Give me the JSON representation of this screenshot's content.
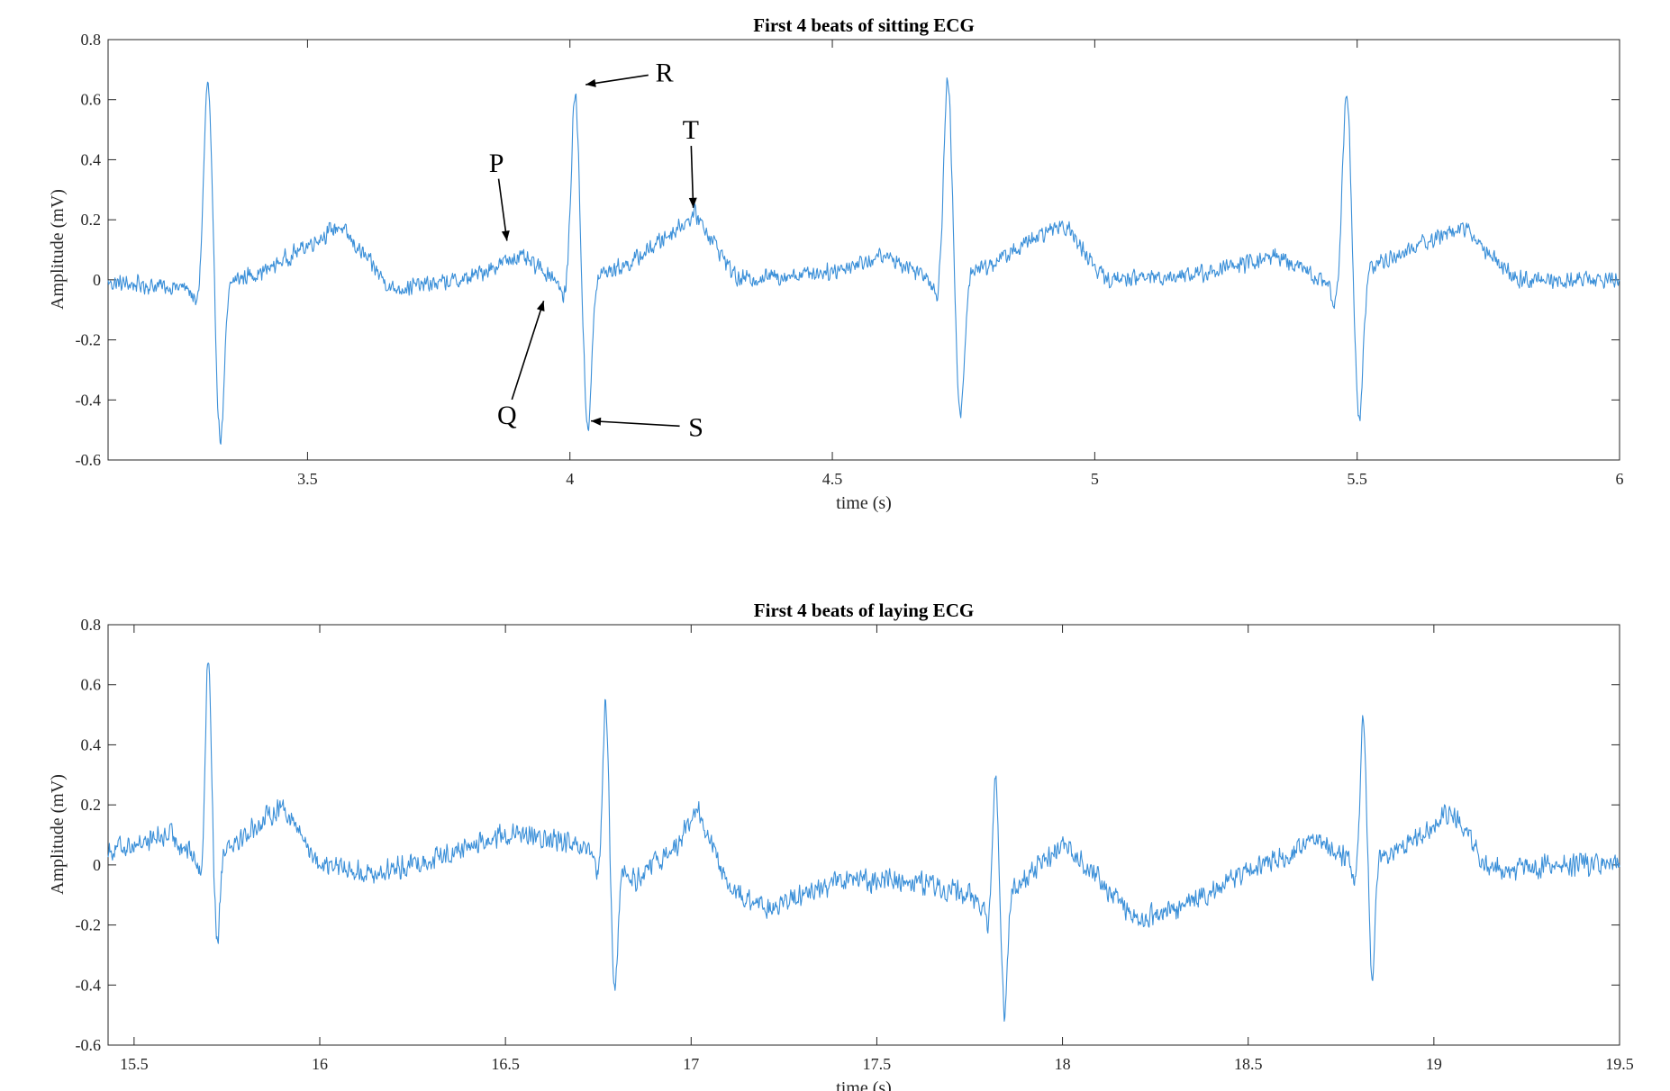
{
  "chart_data": [
    {
      "type": "line",
      "title": "First 4 beats of sitting ECG",
      "xlabel": "time (s)",
      "ylabel": "Amplitude (mV)",
      "xlim": [
        3.12,
        6.0
      ],
      "ylim": [
        -0.6,
        0.8
      ],
      "xticks": [
        3.5,
        4,
        4.5,
        5,
        5.5,
        6
      ],
      "xtick_labels": [
        "3.5",
        "4",
        "4.5",
        "5",
        "5.5",
        "6"
      ],
      "yticks": [
        -0.6,
        -0.4,
        -0.2,
        0,
        0.2,
        0.4,
        0.6,
        0.8
      ],
      "ytick_labels": [
        "-0.6",
        "-0.4",
        "-0.2",
        "0",
        "0.2",
        "0.4",
        "0.6",
        "0.8"
      ],
      "grid": false,
      "line_color": "#3a8fd8",
      "noise_amplitude": 0.035,
      "baseline_points": [
        [
          3.12,
          -0.01
        ],
        [
          3.3,
          -0.03
        ],
        [
          3.42,
          0.03
        ],
        [
          3.56,
          0.18
        ],
        [
          3.66,
          -0.03
        ],
        [
          3.8,
          0.0
        ],
        [
          3.9,
          0.08
        ],
        [
          4.0,
          -0.02
        ],
        [
          4.12,
          0.06
        ],
        [
          4.24,
          0.22
        ],
        [
          4.32,
          0.0
        ],
        [
          4.5,
          0.03
        ],
        [
          4.6,
          0.08
        ],
        [
          4.7,
          0.0
        ],
        [
          4.8,
          0.05
        ],
        [
          4.94,
          0.19
        ],
        [
          5.02,
          0.0
        ],
        [
          5.2,
          0.02
        ],
        [
          5.35,
          0.08
        ],
        [
          5.45,
          -0.02
        ],
        [
          5.56,
          0.07
        ],
        [
          5.7,
          0.18
        ],
        [
          5.8,
          0.0
        ],
        [
          6.0,
          0.0
        ]
      ],
      "beats": [
        {
          "peak_time": 3.31,
          "r": 0.7,
          "s": -0.5
        },
        {
          "peak_time": 4.01,
          "r": 0.65,
          "s": -0.47
        },
        {
          "peak_time": 4.72,
          "r": 0.67,
          "s": -0.46
        },
        {
          "peak_time": 5.48,
          "r": 0.64,
          "s": -0.46
        }
      ],
      "annotations": [
        {
          "text": "R",
          "x": 4.18,
          "y": 0.69,
          "arrow_to": [
            4.03,
            0.65
          ]
        },
        {
          "text": "T",
          "x": 4.23,
          "y": 0.5,
          "arrow_to": [
            4.235,
            0.24
          ]
        },
        {
          "text": "P",
          "x": 3.86,
          "y": 0.39,
          "arrow_to": [
            3.88,
            0.13
          ]
        },
        {
          "text": "Q",
          "x": 3.88,
          "y": -0.45,
          "arrow_to": [
            3.95,
            -0.07
          ]
        },
        {
          "text": "S",
          "x": 4.24,
          "y": -0.49,
          "arrow_to": [
            4.04,
            -0.47
          ]
        }
      ]
    },
    {
      "type": "line",
      "title": "First 4 beats of laying ECG",
      "xlabel": "time (s)",
      "ylabel": "Amplitude (mV)",
      "xlim": [
        15.43,
        19.5
      ],
      "ylim": [
        -0.6,
        0.8
      ],
      "xticks": [
        15.5,
        16,
        16.5,
        17,
        17.5,
        18,
        18.5,
        19,
        19.5
      ],
      "xtick_labels": [
        "15.5",
        "16",
        "16.5",
        "17",
        "17.5",
        "18",
        "18.5",
        "19",
        "19.5"
      ],
      "yticks": [
        -0.6,
        -0.4,
        -0.2,
        0,
        0.2,
        0.4,
        0.6,
        0.8
      ],
      "ytick_labels": [
        "-0.6",
        "-0.4",
        "-0.2",
        "0",
        "0.2",
        "0.4",
        "0.6",
        "0.8"
      ],
      "grid": false,
      "line_color": "#3a8fd8",
      "noise_amplitude": 0.045,
      "baseline_points": [
        [
          15.43,
          0.05
        ],
        [
          15.6,
          0.1
        ],
        [
          15.67,
          0.02
        ],
        [
          15.8,
          0.1
        ],
        [
          15.9,
          0.2
        ],
        [
          16.0,
          0.0
        ],
        [
          16.15,
          -0.03
        ],
        [
          16.3,
          0.02
        ],
        [
          16.5,
          0.1
        ],
        [
          16.65,
          0.08
        ],
        [
          16.75,
          0.02
        ],
        [
          16.85,
          -0.05
        ],
        [
          16.95,
          0.05
        ],
        [
          17.02,
          0.18
        ],
        [
          17.1,
          -0.08
        ],
        [
          17.2,
          -0.15
        ],
        [
          17.4,
          -0.05
        ],
        [
          17.6,
          -0.05
        ],
        [
          17.75,
          -0.1
        ],
        [
          17.8,
          -0.15
        ],
        [
          17.9,
          -0.05
        ],
        [
          18.0,
          0.08
        ],
        [
          18.1,
          -0.05
        ],
        [
          18.2,
          -0.18
        ],
        [
          18.3,
          -0.15
        ],
        [
          18.5,
          -0.02
        ],
        [
          18.7,
          0.08
        ],
        [
          18.8,
          0.0
        ],
        [
          18.9,
          0.05
        ],
        [
          19.05,
          0.18
        ],
        [
          19.15,
          -0.02
        ],
        [
          19.3,
          0.0
        ],
        [
          19.5,
          0.0
        ]
      ],
      "beats": [
        {
          "peak_time": 15.7,
          "r": 0.68,
          "s": -0.28
        },
        {
          "peak_time": 16.77,
          "r": 0.55,
          "s": -0.41
        },
        {
          "peak_time": 17.82,
          "r": 0.43,
          "s": -0.38
        },
        {
          "peak_time": 18.81,
          "r": 0.5,
          "s": -0.38
        }
      ],
      "annotations": []
    }
  ]
}
